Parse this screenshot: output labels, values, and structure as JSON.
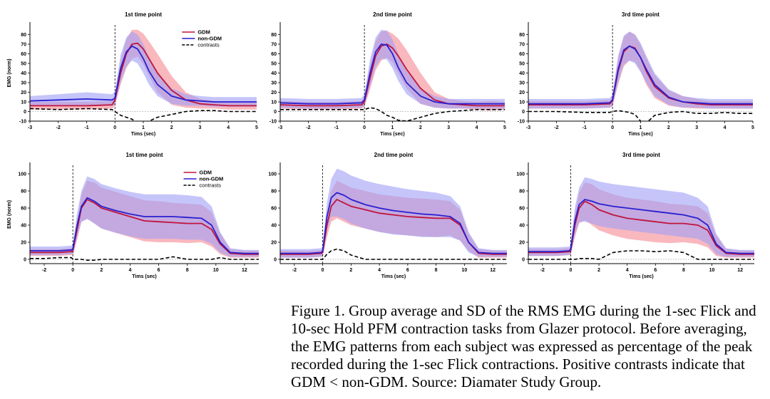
{
  "caption": "Figure 1. Group average and SD of the RMS EMG during the 1-sec Flick and 10-sec Hold PFM contraction tasks from Glazer protocol. Before averaging, the EMG patterns from each subject was expressed as percentage of the peak recorded during the 1-sec Flick contractions. Positive contrasts indicate that GDM < non-GDM. Source: Diamater Study Group.",
  "colors": {
    "gdm_line": "#c0143c",
    "gdm_band": "#f7a0a8",
    "nongdm_line": "#2a1fd0",
    "nongdm_band": "#9e9ef7",
    "contrast_line": "#000000",
    "zero_line": "#9a9a9a"
  },
  "chart_data": [
    {
      "type": "line",
      "title": "1st time point",
      "xlabel": "Tims (sec)",
      "ylabel": "EMG (norm)",
      "xlim": [
        -3,
        5
      ],
      "ylim": [
        -10,
        90
      ],
      "xticks": [
        -3,
        -2,
        -1,
        0,
        1,
        2,
        3,
        4,
        5
      ],
      "yticks": [
        -10,
        0,
        10,
        20,
        30,
        40,
        50,
        60,
        70,
        80
      ],
      "legend": [
        "GDM",
        "non-GDM",
        "contrasts"
      ],
      "legend_position": "top-right",
      "x": [
        -3,
        -2,
        -1,
        -0.1,
        0,
        0.2,
        0.4,
        0.6,
        0.8,
        1.0,
        1.2,
        1.5,
        2.0,
        2.5,
        3,
        3.5,
        4,
        4.5,
        5
      ],
      "series": [
        {
          "name": "GDM",
          "values": [
            6,
            6,
            6,
            7,
            12,
            40,
            60,
            70,
            71,
            65,
            55,
            40,
            22,
            12,
            8,
            7,
            6,
            6,
            6
          ],
          "sd": [
            4,
            4,
            4,
            4,
            6,
            12,
            15,
            15,
            14,
            16,
            18,
            20,
            15,
            8,
            5,
            4,
            4,
            4,
            4
          ]
        },
        {
          "name": "non-GDM",
          "values": [
            11,
            12,
            13,
            12,
            14,
            45,
            62,
            68,
            65,
            55,
            42,
            28,
            16,
            12,
            11,
            10,
            10,
            10,
            10
          ],
          "sd": [
            5,
            6,
            7,
            6,
            7,
            14,
            15,
            15,
            15,
            15,
            14,
            12,
            8,
            6,
            5,
            5,
            5,
            5,
            5
          ]
        },
        {
          "name": "contrasts",
          "values": [
            3,
            2,
            3,
            2,
            0,
            -4,
            -6,
            -8,
            -12,
            -13,
            -10,
            -6,
            -3,
            0,
            1,
            1,
            0,
            0,
            0
          ]
        }
      ]
    },
    {
      "type": "line",
      "title": "2nd time point",
      "xlabel": "Tims (sec)",
      "ylabel": "",
      "xlim": [
        -3,
        5
      ],
      "ylim": [
        -10,
        90
      ],
      "xticks": [
        -3,
        -2,
        -1,
        0,
        1,
        2,
        3,
        4,
        5
      ],
      "yticks": [
        -10,
        0,
        10,
        20,
        30,
        40,
        50,
        60,
        70,
        80
      ],
      "x": [
        -3,
        -2,
        -1,
        -0.1,
        0,
        0.2,
        0.4,
        0.6,
        0.8,
        1.0,
        1.2,
        1.5,
        2.0,
        2.5,
        3,
        3.5,
        4,
        4.5,
        5
      ],
      "series": [
        {
          "name": "GDM",
          "values": [
            7,
            6,
            6,
            7,
            10,
            35,
            58,
            68,
            70,
            66,
            58,
            44,
            24,
            12,
            8,
            7,
            6,
            6,
            6
          ],
          "sd": [
            4,
            4,
            4,
            4,
            5,
            12,
            15,
            15,
            14,
            15,
            18,
            20,
            16,
            8,
            5,
            4,
            4,
            5,
            4
          ]
        },
        {
          "name": "non-GDM",
          "values": [
            9,
            8,
            8,
            9,
            12,
            40,
            62,
            70,
            69,
            60,
            46,
            30,
            16,
            10,
            8,
            8,
            8,
            8,
            8
          ],
          "sd": [
            5,
            5,
            5,
            5,
            6,
            14,
            15,
            15,
            15,
            15,
            14,
            12,
            8,
            6,
            5,
            5,
            5,
            5,
            5
          ]
        },
        {
          "name": "contrasts",
          "values": [
            2,
            2,
            2,
            2,
            2,
            4,
            3,
            0,
            -4,
            -6,
            -9,
            -10,
            -6,
            -2,
            0,
            1,
            2,
            2,
            2
          ]
        }
      ]
    },
    {
      "type": "line",
      "title": "3rd time point",
      "xlabel": "Tims (sec)",
      "ylabel": "",
      "xlim": [
        -3,
        5
      ],
      "ylim": [
        -10,
        90
      ],
      "xticks": [
        -3,
        -2,
        -1,
        0,
        1,
        2,
        3,
        4,
        5
      ],
      "yticks": [
        -10,
        0,
        10,
        20,
        30,
        40,
        50,
        60,
        70,
        80
      ],
      "x": [
        -3,
        -2,
        -1,
        -0.1,
        0,
        0.2,
        0.4,
        0.6,
        0.8,
        1.0,
        1.2,
        1.5,
        2.0,
        2.5,
        3,
        3.5,
        4,
        4.5,
        5
      ],
      "series": [
        {
          "name": "GDM",
          "values": [
            7,
            7,
            7,
            8,
            11,
            42,
            62,
            68,
            66,
            56,
            42,
            26,
            14,
            10,
            8,
            7,
            7,
            7,
            7
          ],
          "sd": [
            4,
            4,
            4,
            4,
            6,
            14,
            15,
            15,
            14,
            14,
            14,
            12,
            8,
            6,
            5,
            4,
            4,
            4,
            4
          ]
        },
        {
          "name": "non-GDM",
          "values": [
            8,
            8,
            8,
            9,
            12,
            44,
            64,
            68,
            65,
            56,
            44,
            28,
            15,
            10,
            9,
            8,
            8,
            8,
            8
          ],
          "sd": [
            5,
            5,
            5,
            5,
            6,
            14,
            15,
            15,
            15,
            15,
            14,
            12,
            8,
            6,
            5,
            5,
            5,
            5,
            5
          ]
        },
        {
          "name": "contrasts",
          "values": [
            0,
            0,
            -1,
            -1,
            0,
            1,
            0,
            -1,
            -3,
            -10,
            -12,
            -4,
            -1,
            0,
            -2,
            -2,
            -1,
            -2,
            -2
          ]
        }
      ]
    },
    {
      "type": "line",
      "title": "1st time point",
      "xlabel": "Tims (sec)",
      "ylabel": "EMG (norm)",
      "xlim": [
        -3,
        13
      ],
      "ylim": [
        -5,
        110
      ],
      "xticks": [
        -2,
        0,
        2,
        4,
        6,
        8,
        10,
        12
      ],
      "yticks": [
        0,
        20,
        40,
        60,
        80,
        100
      ],
      "legend": [
        "GDM",
        "non-GDM",
        "contrasts"
      ],
      "legend_position": "top-right",
      "x": [
        -3,
        -2,
        -1,
        -0.1,
        0,
        0.3,
        0.6,
        1,
        1.5,
        2,
        3,
        4,
        5,
        6,
        7,
        8,
        9,
        9.7,
        10.3,
        11,
        12,
        13
      ],
      "series": [
        {
          "name": "GDM",
          "values": [
            8,
            8,
            8,
            9,
            10,
            35,
            60,
            70,
            66,
            60,
            55,
            50,
            45,
            44,
            43,
            42,
            42,
            35,
            18,
            7,
            6,
            6
          ],
          "sd": [
            4,
            4,
            4,
            4,
            5,
            12,
            16,
            22,
            24,
            24,
            24,
            24,
            24,
            24,
            23,
            23,
            22,
            20,
            12,
            5,
            4,
            4
          ]
        },
        {
          "name": "non-GDM",
          "values": [
            10,
            10,
            10,
            11,
            12,
            40,
            62,
            72,
            68,
            62,
            57,
            53,
            50,
            50,
            50,
            49,
            48,
            40,
            20,
            8,
            7,
            7
          ],
          "sd": [
            5,
            5,
            5,
            5,
            6,
            14,
            18,
            25,
            26,
            26,
            26,
            26,
            26,
            26,
            26,
            26,
            25,
            22,
            12,
            5,
            4,
            4
          ]
        },
        {
          "name": "contrasts",
          "values": [
            1,
            1,
            2,
            2,
            0,
            0,
            0,
            -1,
            -1,
            0,
            0,
            0,
            0,
            0,
            3,
            0,
            0,
            0,
            2,
            0,
            0,
            0
          ]
        }
      ]
    },
    {
      "type": "line",
      "title": "2nd time point",
      "xlabel": "Tims (sec)",
      "ylabel": "",
      "xlim": [
        -3,
        13
      ],
      "ylim": [
        -5,
        110
      ],
      "xticks": [
        -2,
        0,
        2,
        4,
        6,
        8,
        10,
        12
      ],
      "yticks": [
        0,
        20,
        40,
        60,
        80,
        100
      ],
      "x": [
        -3,
        -2,
        -1,
        -0.1,
        0,
        0.3,
        0.6,
        1,
        1.5,
        2,
        3,
        4,
        5,
        6,
        7,
        8,
        9,
        9.7,
        10.3,
        11,
        12,
        13
      ],
      "series": [
        {
          "name": "GDM",
          "values": [
            6,
            6,
            6,
            7,
            8,
            40,
            62,
            70,
            66,
            62,
            58,
            54,
            52,
            50,
            49,
            48,
            48,
            40,
            20,
            7,
            6,
            6
          ],
          "sd": [
            4,
            4,
            4,
            4,
            5,
            14,
            18,
            22,
            22,
            22,
            22,
            22,
            22,
            22,
            22,
            22,
            20,
            18,
            10,
            5,
            4,
            4
          ]
        },
        {
          "name": "non-GDM",
          "values": [
            7,
            7,
            7,
            8,
            10,
            50,
            72,
            78,
            75,
            70,
            64,
            60,
            57,
            55,
            53,
            52,
            50,
            42,
            20,
            8,
            7,
            7
          ],
          "sd": [
            5,
            5,
            5,
            5,
            6,
            16,
            22,
            28,
            28,
            28,
            28,
            28,
            28,
            27,
            27,
            26,
            24,
            20,
            12,
            5,
            4,
            4
          ]
        },
        {
          "name": "contrasts",
          "values": [
            0,
            0,
            0,
            0,
            0,
            6,
            10,
            12,
            10,
            5,
            0,
            0,
            0,
            0,
            0,
            0,
            0,
            0,
            0,
            0,
            0,
            0
          ]
        }
      ]
    },
    {
      "type": "line",
      "title": "3rd time point",
      "xlabel": "Tims (sec)",
      "ylabel": "",
      "xlim": [
        -3,
        13
      ],
      "ylim": [
        -5,
        110
      ],
      "xticks": [
        -2,
        0,
        2,
        4,
        6,
        8,
        10,
        12
      ],
      "yticks": [
        0,
        20,
        40,
        60,
        80,
        100
      ],
      "x": [
        -3,
        -2,
        -1,
        -0.1,
        0,
        0.3,
        0.6,
        1,
        1.5,
        2,
        3,
        4,
        5,
        6,
        7,
        8,
        9,
        9.7,
        10.3,
        11,
        12,
        13
      ],
      "series": [
        {
          "name": "GDM",
          "values": [
            8,
            8,
            8,
            9,
            10,
            40,
            60,
            68,
            64,
            58,
            52,
            48,
            46,
            44,
            42,
            42,
            40,
            34,
            16,
            7,
            6,
            6
          ],
          "sd": [
            4,
            4,
            4,
            4,
            5,
            14,
            18,
            22,
            24,
            24,
            24,
            24,
            24,
            24,
            23,
            22,
            22,
            20,
            12,
            5,
            4,
            4
          ]
        },
        {
          "name": "non-GDM",
          "values": [
            9,
            9,
            9,
            10,
            12,
            45,
            64,
            70,
            68,
            65,
            62,
            60,
            58,
            56,
            54,
            52,
            48,
            40,
            18,
            8,
            7,
            7
          ],
          "sd": [
            5,
            5,
            5,
            5,
            6,
            16,
            20,
            26,
            26,
            26,
            26,
            26,
            26,
            26,
            26,
            26,
            24,
            22,
            12,
            5,
            4,
            4
          ]
        },
        {
          "name": "contrasts",
          "values": [
            0,
            0,
            0,
            0,
            0,
            0,
            1,
            1,
            1,
            0,
            8,
            10,
            10,
            9,
            10,
            8,
            0,
            0,
            0,
            0,
            0,
            0
          ]
        }
      ]
    }
  ]
}
